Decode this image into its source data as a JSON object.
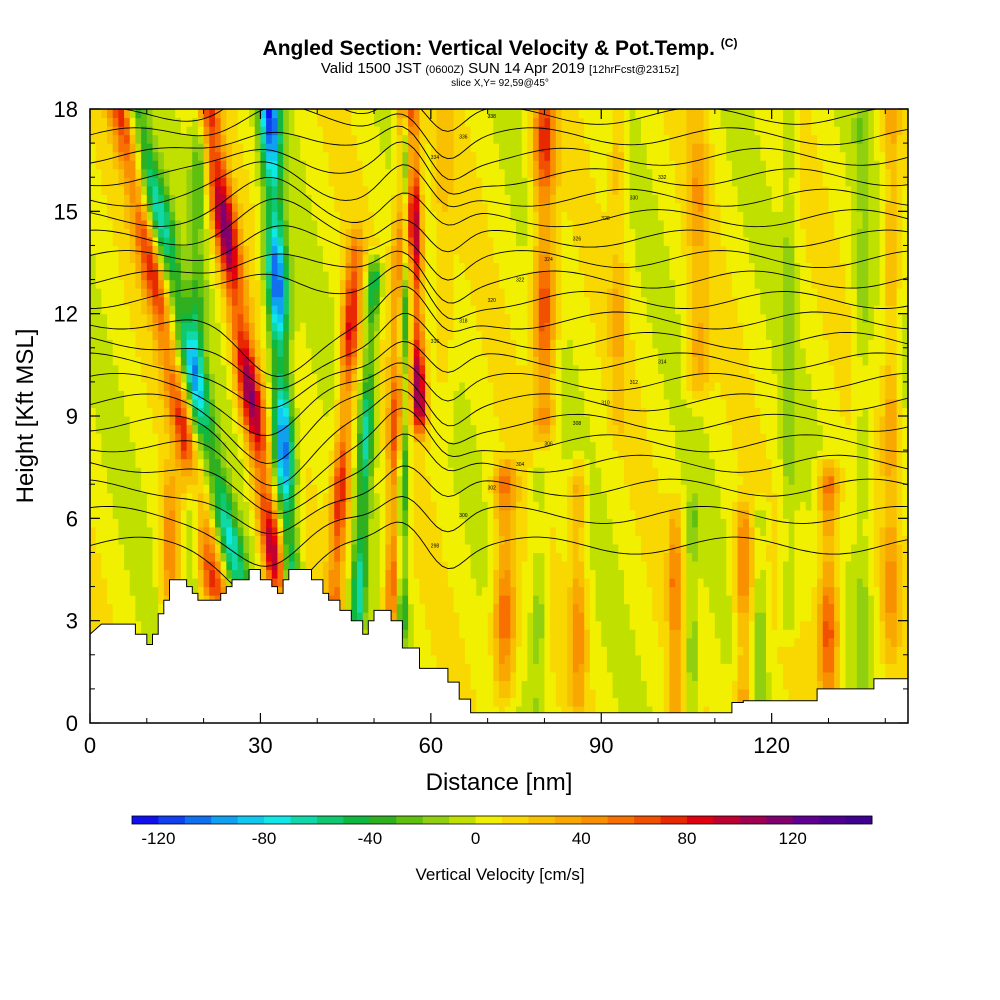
{
  "header": {
    "title": "Angled Section: Vertical Velocity & Pot.Temp.",
    "title_mark": "(C)",
    "valid_prefix": "Valid 1500 JST",
    "valid_utc": "(0600Z)",
    "valid_date": "SUN 14 Apr 2019",
    "forecast": "[12hrFcst@2315z]",
    "slice": "slice X,Y= 92,59@45°"
  },
  "chart_data": {
    "type": "heatmap",
    "xlabel": "Distance [nm]",
    "ylabel": "Height [Kft MSL]",
    "xlim": [
      0,
      144
    ],
    "ylim": [
      0,
      18
    ],
    "x_ticks": [
      "0",
      "30",
      "60",
      "90",
      "120"
    ],
    "y_ticks": [
      "0",
      "3",
      "6",
      "9",
      "12",
      "15",
      "18"
    ],
    "colorbar": {
      "title": "Vertical Velocity [cm/s]",
      "min": -130,
      "max": 150,
      "step": 10,
      "labels": [
        "-120",
        "-80",
        "-40",
        "0",
        "40",
        "80",
        "120"
      ],
      "colors": [
        "#1010ee",
        "#1040f0",
        "#1070f0",
        "#10a0f0",
        "#10c8f0",
        "#10e8e8",
        "#10d8a8",
        "#10c870",
        "#10b840",
        "#30b020",
        "#60c010",
        "#90d010",
        "#c0e000",
        "#f0f000",
        "#f8d800",
        "#f8c000",
        "#f8a800",
        "#f89000",
        "#f87000",
        "#f05000",
        "#e82800",
        "#e00010",
        "#c00030",
        "#a00050",
        "#800070",
        "#600090",
        "#500090",
        "#400090"
      ]
    },
    "terrain_kft": [
      [
        0,
        2.6
      ],
      [
        2,
        2.9
      ],
      [
        8,
        2.9
      ],
      [
        8,
        2.6
      ],
      [
        10,
        2.6
      ],
      [
        10,
        2.3
      ],
      [
        11,
        2.3
      ],
      [
        11,
        2.6
      ],
      [
        12,
        2.6
      ],
      [
        12,
        3.2
      ],
      [
        13,
        3.2
      ],
      [
        13,
        3.6
      ],
      [
        14,
        3.6
      ],
      [
        14,
        4.2
      ],
      [
        17,
        4.2
      ],
      [
        17,
        4.0
      ],
      [
        18,
        4.0
      ],
      [
        18,
        3.8
      ],
      [
        19,
        3.8
      ],
      [
        19,
        3.6
      ],
      [
        23,
        3.6
      ],
      [
        23,
        3.8
      ],
      [
        24,
        3.8
      ],
      [
        24,
        4.0
      ],
      [
        25,
        4.0
      ],
      [
        25,
        4.2
      ],
      [
        28,
        4.2
      ],
      [
        28,
        4.5
      ],
      [
        30,
        4.5
      ],
      [
        30,
        4.2
      ],
      [
        32,
        4.2
      ],
      [
        32,
        4.0
      ],
      [
        33,
        4.0
      ],
      [
        33,
        3.8
      ],
      [
        34,
        3.8
      ],
      [
        34,
        4.2
      ],
      [
        35,
        4.2
      ],
      [
        35,
        4.5
      ],
      [
        39,
        4.5
      ],
      [
        39,
        4.2
      ],
      [
        41,
        4.2
      ],
      [
        41,
        3.8
      ],
      [
        42,
        3.8
      ],
      [
        42,
        3.6
      ],
      [
        44,
        3.6
      ],
      [
        44,
        3.3
      ],
      [
        46,
        3.3
      ],
      [
        46,
        3.0
      ],
      [
        48,
        3.0
      ],
      [
        48,
        2.6
      ],
      [
        49,
        2.6
      ],
      [
        49,
        3.0
      ],
      [
        50,
        3.0
      ],
      [
        50,
        3.3
      ],
      [
        53,
        3.3
      ],
      [
        53,
        3.0
      ],
      [
        55,
        3.0
      ],
      [
        55,
        2.2
      ],
      [
        58,
        2.2
      ],
      [
        58,
        1.6
      ],
      [
        63,
        1.6
      ],
      [
        63,
        1.2
      ],
      [
        65,
        1.2
      ],
      [
        65,
        0.7
      ],
      [
        67,
        0.7
      ],
      [
        67,
        0.3
      ],
      [
        113,
        0.3
      ],
      [
        113,
        0.6
      ],
      [
        115,
        0.6
      ],
      [
        115,
        0.65
      ],
      [
        128,
        0.65
      ],
      [
        128,
        1.0
      ],
      [
        138,
        1.0
      ],
      [
        138,
        1.3
      ],
      [
        144,
        1.3
      ]
    ],
    "theta_contours": [
      {
        "label": "298",
        "base": 5.2
      },
      {
        "label": "300",
        "base": 6.1
      },
      {
        "label": "302",
        "base": 6.9
      },
      {
        "label": "304",
        "base": 7.6
      },
      {
        "label": "306",
        "base": 8.2
      },
      {
        "label": "308",
        "base": 8.8
      },
      {
        "label": "310",
        "base": 9.4
      },
      {
        "label": "312",
        "base": 10.0
      },
      {
        "label": "314",
        "base": 10.6
      },
      {
        "label": "316",
        "base": 11.2
      },
      {
        "label": "318",
        "base": 11.8
      },
      {
        "label": "320",
        "base": 12.4
      },
      {
        "label": "322",
        "base": 13.0
      },
      {
        "label": "324",
        "base": 13.6
      },
      {
        "label": "326",
        "base": 14.2
      },
      {
        "label": "328",
        "base": 14.8
      },
      {
        "label": "330",
        "base": 15.4
      },
      {
        "label": "332",
        "base": 16.0
      },
      {
        "label": "334",
        "base": 16.6
      },
      {
        "label": "336",
        "base": 17.2
      },
      {
        "label": "338",
        "base": 17.8
      }
    ],
    "velocity_features": [
      {
        "x": 14,
        "slope": 0.0,
        "width": 1.5,
        "amp": 45,
        "ymin": 3.5,
        "ymax": 7
      },
      {
        "x": 18,
        "slope": 0.1,
        "width": 1.5,
        "amp": -40,
        "ymin": 3.8,
        "ymax": 18
      },
      {
        "x": 22,
        "slope": -1.2,
        "width": 2.0,
        "amp": 70,
        "ymin": 4,
        "ymax": 18
      },
      {
        "x": 26,
        "slope": -1.3,
        "width": 2.0,
        "amp": -75,
        "ymin": 4.3,
        "ymax": 18
      },
      {
        "x": 33,
        "slope": -0.9,
        "width": 2.0,
        "amp": 110,
        "ymin": 4.3,
        "ymax": 18
      },
      {
        "x": 35,
        "slope": -0.25,
        "width": 1.8,
        "amp": -120,
        "ymin": 4.5,
        "ymax": 18
      },
      {
        "x": 43,
        "slope": 0.35,
        "width": 1.5,
        "amp": 80,
        "ymin": 3.5,
        "ymax": 14
      },
      {
        "x": 47,
        "slope": 0.3,
        "width": 1.3,
        "amp": -70,
        "ymin": 3,
        "ymax": 13
      },
      {
        "x": 53,
        "slope": 0.15,
        "width": 1.3,
        "amp": 60,
        "ymin": 3.2,
        "ymax": 18
      },
      {
        "x": 55,
        "slope": 0.05,
        "width": 1.0,
        "amp": -60,
        "ymin": 3,
        "ymax": 18
      },
      {
        "x": 58,
        "slope": -0.15,
        "width": 1.2,
        "amp": 110,
        "ymin": 9,
        "ymax": 18
      },
      {
        "x": 62,
        "slope": 0.0,
        "width": 2.0,
        "amp": 20,
        "ymin": 9,
        "ymax": 18
      },
      {
        "x": 73,
        "slope": 0.0,
        "width": 2.0,
        "amp": 60,
        "ymin": 1,
        "ymax": 7
      },
      {
        "x": 79,
        "slope": 0.0,
        "width": 1.3,
        "amp": -25,
        "ymin": 0.3,
        "ymax": 7
      },
      {
        "x": 80,
        "slope": 0.0,
        "width": 2.0,
        "amp": 70,
        "ymin": 9,
        "ymax": 18
      },
      {
        "x": 86,
        "slope": 0.0,
        "width": 1.5,
        "amp": 40,
        "ymin": 0.5,
        "ymax": 7
      },
      {
        "x": 93,
        "slope": 0.0,
        "width": 1.5,
        "amp": 25,
        "ymin": 9,
        "ymax": 18
      },
      {
        "x": 103,
        "slope": 0.0,
        "width": 1.2,
        "amp": 45,
        "ymin": 0.5,
        "ymax": 6
      },
      {
        "x": 106,
        "slope": 0.0,
        "width": 1.0,
        "amp": -30,
        "ymin": 0.3,
        "ymax": 6
      },
      {
        "x": 107,
        "slope": 0.0,
        "width": 2.0,
        "amp": 30,
        "ymin": 10,
        "ymax": 18
      },
      {
        "x": 115,
        "slope": 0.0,
        "width": 1.5,
        "amp": 50,
        "ymin": 0.5,
        "ymax": 6
      },
      {
        "x": 118,
        "slope": 0.0,
        "width": 1.2,
        "amp": -25,
        "ymin": 0.5,
        "ymax": 6
      },
      {
        "x": 123,
        "slope": 0.0,
        "width": 1.3,
        "amp": -20,
        "ymin": 3,
        "ymax": 18
      },
      {
        "x": 130,
        "slope": 0.0,
        "width": 1.8,
        "amp": 65,
        "ymin": 1,
        "ymax": 7
      },
      {
        "x": 136,
        "slope": 0.0,
        "width": 1.5,
        "amp": -20,
        "ymin": 1,
        "ymax": 18
      },
      {
        "x": 141,
        "slope": 0.0,
        "width": 1.5,
        "amp": 35,
        "ymin": 2,
        "ymax": 18
      }
    ]
  }
}
